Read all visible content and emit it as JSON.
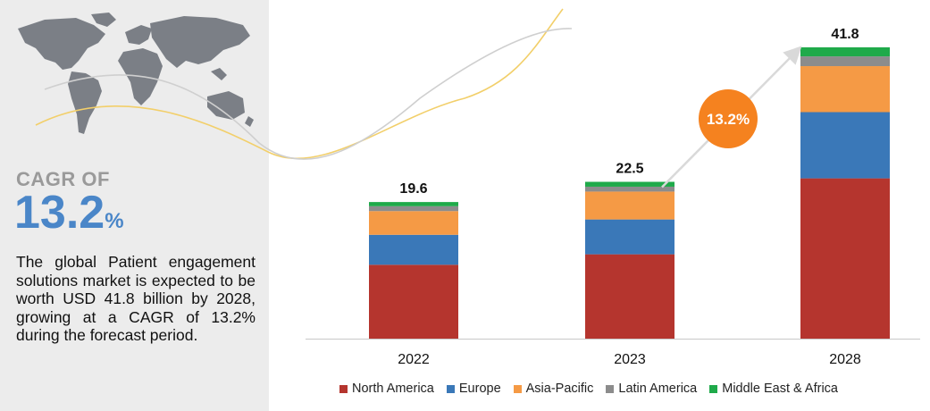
{
  "summary": {
    "cagr_label": "CAGR OF",
    "cagr_value": "13.2",
    "cagr_unit": "%",
    "description": "The global Patient engagement solutions market is expected to be worth USD 41.8 billion by 2028, growing at a CAGR of 13.2% during the forecast period."
  },
  "chart_data": {
    "type": "bar",
    "stacked": true,
    "categories": [
      "2022",
      "2023",
      "2028"
    ],
    "totals": [
      19.6,
      22.5,
      41.8
    ],
    "total_labels": [
      "19.6",
      "22.5",
      "41.8"
    ],
    "series": [
      {
        "name": "North America",
        "color": "#b5352e",
        "values": [
          10.6,
          12.1,
          23.0
        ]
      },
      {
        "name": "Europe",
        "color": "#3a78b8",
        "values": [
          4.3,
          5.0,
          9.5
        ]
      },
      {
        "name": "Asia-Pacific",
        "color": "#f59a45",
        "values": [
          3.4,
          4.0,
          6.6
        ]
      },
      {
        "name": "Latin America",
        "color": "#8c8c8c",
        "values": [
          0.7,
          0.7,
          1.4
        ]
      },
      {
        "name": "Middle East & Africa",
        "color": "#1faa4a",
        "values": [
          0.6,
          0.7,
          1.3
        ]
      }
    ],
    "annotation": "13.2%",
    "annotation_color": "#f5821f",
    "ylim": [
      0,
      45
    ],
    "grid": false,
    "legend_position": "bottom"
  }
}
